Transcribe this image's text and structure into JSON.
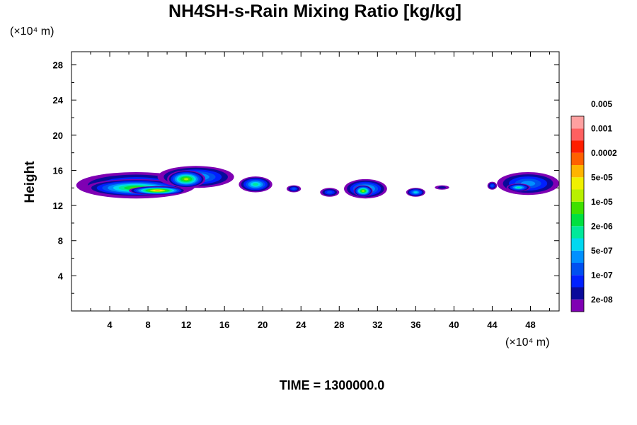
{
  "chart_data": {
    "type": "heatmap",
    "title": "NH4SH-s-Rain Mixing Ratio [kg/kg]",
    "ylabel": "Height",
    "x_unit": "(×10⁴ m)",
    "y_unit": "(×10⁴ m)",
    "xlim": [
      0,
      51
    ],
    "ylim": [
      0,
      29.5
    ],
    "x_ticks": [
      "4",
      "8",
      "12",
      "16",
      "20",
      "24",
      "28",
      "32",
      "36",
      "40",
      "44",
      "48"
    ],
    "y_ticks": [
      "4",
      "8",
      "12",
      "16",
      "20",
      "24",
      "28"
    ],
    "x_tick_values": [
      4,
      8,
      12,
      16,
      20,
      24,
      28,
      32,
      36,
      40,
      44,
      48
    ],
    "y_tick_values": [
      4,
      8,
      12,
      16,
      20,
      24,
      28
    ],
    "legend": {
      "placement": "right",
      "colors": [
        "#7f00b3",
        "#0a0a9a",
        "#0020ff",
        "#0050f0",
        "#0090ff",
        "#00d8f0",
        "#00e89a",
        "#00e040",
        "#40e000",
        "#b8f000",
        "#f0f000",
        "#ffb400",
        "#ff6000",
        "#ff1e00",
        "#ff6060",
        "#ffa0a0"
      ],
      "labels": [
        "2e-08",
        "1e-07",
        "5e-07",
        "2e-06",
        "1e-05",
        "5e-05",
        "0.0002",
        "0.001",
        "0.005"
      ]
    },
    "regions": [
      {
        "x": [
          0.5,
          13
        ],
        "y": [
          12.8,
          15.8
        ],
        "level": 4
      },
      {
        "x": [
          1.5,
          12
        ],
        "y": [
          13.0,
          15.0
        ],
        "level": 8
      },
      {
        "x": [
          6,
          12
        ],
        "y": [
          13.2,
          14.2
        ],
        "level": 11
      },
      {
        "x": [
          9,
          17
        ],
        "y": [
          14.0,
          16.5
        ],
        "level": 5
      },
      {
        "x": [
          10,
          14
        ],
        "y": [
          14.0,
          16.0
        ],
        "level": 9
      },
      {
        "x": [
          17.5,
          21
        ],
        "y": [
          13.5,
          15.3
        ],
        "level": 6
      },
      {
        "x": [
          22.5,
          24
        ],
        "y": [
          13.5,
          14.3
        ],
        "level": 3
      },
      {
        "x": [
          26,
          28
        ],
        "y": [
          13.0,
          14.0
        ],
        "level": 3
      },
      {
        "x": [
          28.5,
          33
        ],
        "y": [
          12.8,
          15.0
        ],
        "level": 6
      },
      {
        "x": [
          29.5,
          31.5
        ],
        "y": [
          13.0,
          14.3
        ],
        "level": 9
      },
      {
        "x": [
          35,
          37
        ],
        "y": [
          13.0,
          14.0
        ],
        "level": 5
      },
      {
        "x": [
          38,
          39.5
        ],
        "y": [
          13.8,
          14.3
        ],
        "level": 1
      },
      {
        "x": [
          43.5,
          44.5
        ],
        "y": [
          13.8,
          14.7
        ],
        "level": 3
      },
      {
        "x": [
          44.5,
          51
        ],
        "y": [
          13.2,
          15.8
        ],
        "level": 4
      },
      {
        "x": [
          45.5,
          48
        ],
        "y": [
          13.6,
          14.5
        ],
        "level": 6
      }
    ]
  },
  "footer": {
    "time_label": "TIME = 1300000.0"
  }
}
